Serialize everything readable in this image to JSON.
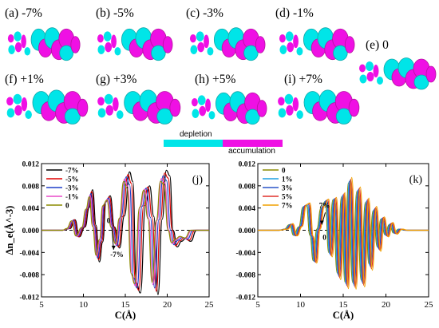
{
  "colors": {
    "depletion": "#00e5e8",
    "accumulation": "#ef10e4",
    "depletion_dark": "#11a7a9",
    "accumulation_dark": "#b5129f"
  },
  "panels": [
    {
      "label": "(a) -7%"
    },
    {
      "label": "(b) -5%"
    },
    {
      "label": "(c) -3%"
    },
    {
      "label": "(d) -1%"
    },
    {
      "label": "(e) 0"
    },
    {
      "label": "(f) +1%"
    },
    {
      "label": "(g) +3%"
    },
    {
      "label": "(h) +5%"
    },
    {
      "label": "(i) +7%"
    }
  ],
  "colorbar": {
    "depletion_label": "depletion",
    "accumulation_label": "accumulation"
  },
  "chart_data": [
    {
      "type": "line",
      "panel_label": "(j)",
      "xlabel": "C(Å)",
      "ylabel": "Δn_e(Å^-3)",
      "xlim": [
        5,
        25
      ],
      "ylim": [
        -0.012,
        0.012
      ],
      "xticks": [
        5,
        10,
        15,
        20,
        25
      ],
      "yticks": [
        0.012,
        0.008,
        0.004,
        0.0,
        -0.004,
        -0.008,
        -0.012
      ],
      "xtick_labels": [
        "5",
        "10",
        "15",
        "20",
        "25"
      ],
      "ytick_labels": [
        "0.012",
        "0.008",
        "0.004",
        "0.000",
        "-0.004",
        "-0.008",
        "-0.012"
      ],
      "legend_position": "top-left",
      "series": [
        {
          "name": "-7%",
          "color": "#000000",
          "x": [
            5,
            7.5,
            8.4,
            9,
            9.5,
            10.2,
            10.7,
            11.1,
            11.5,
            11.9,
            12.3,
            12.7,
            13.2,
            13.7,
            14.3,
            14.9,
            15.5,
            15.9,
            16.3,
            16.8,
            17.4,
            17.9,
            18.4,
            18.9,
            19.4,
            19.9,
            20.3,
            20.7,
            21.2,
            21.7,
            22.2,
            22.8,
            23.5,
            25
          ],
          "y": [
            0,
            0,
            0.0003,
            0.0019,
            -0.0012,
            0.0006,
            0.0041,
            0.0073,
            0.0009,
            -0.0057,
            -0.0021,
            0.0052,
            0.0062,
            0.0006,
            -0.0032,
            0.0026,
            0.0105,
            0.0088,
            -0.0095,
            -0.0113,
            0.0045,
            0.008,
            0.0025,
            -0.0116,
            0.002,
            0.0108,
            0.0098,
            0.0,
            -0.003,
            -0.002,
            -0.0015,
            -0.002,
            0,
            0
          ]
        },
        {
          "name": "-5%",
          "color": "#e00000",
          "x": [
            5,
            7.5,
            8.3,
            8.9,
            9.4,
            10.1,
            10.6,
            11.0,
            11.4,
            11.8,
            12.2,
            12.6,
            13.1,
            13.6,
            14.2,
            14.7,
            15.3,
            15.7,
            16.2,
            16.6,
            17.2,
            17.7,
            18.2,
            18.7,
            19.2,
            19.7,
            20.1,
            20.6,
            21.0,
            21.5,
            22.0,
            22.6,
            23.3,
            25
          ],
          "y": [
            0,
            0,
            0.0003,
            0.0019,
            -0.0012,
            0.0006,
            0.0041,
            0.007,
            0.0008,
            -0.0053,
            -0.002,
            0.005,
            0.006,
            0.0006,
            -0.003,
            0.0025,
            0.01,
            0.0085,
            -0.009,
            -0.0108,
            0.0044,
            0.0078,
            0.0024,
            -0.011,
            0.002,
            0.0103,
            0.0094,
            0.0,
            -0.0028,
            -0.0019,
            -0.0014,
            -0.0018,
            0,
            0
          ]
        },
        {
          "name": "-3%",
          "color": "#1f3fc8",
          "x": [
            5,
            7.5,
            8.2,
            8.8,
            9.3,
            10.0,
            10.5,
            10.9,
            11.3,
            11.7,
            12.1,
            12.5,
            13.0,
            13.5,
            14.0,
            14.5,
            15.1,
            15.5,
            16.0,
            16.4,
            17.0,
            17.5,
            18.0,
            18.5,
            19.0,
            19.5,
            19.9,
            20.4,
            20.8,
            21.3,
            21.8,
            22.4,
            23.1,
            25
          ],
          "y": [
            0,
            0,
            0.0003,
            0.0018,
            -0.0011,
            0.0006,
            0.004,
            0.0066,
            0.0008,
            -0.005,
            -0.0019,
            0.0048,
            0.0058,
            0.0006,
            -0.0028,
            0.0024,
            0.0096,
            0.0082,
            -0.0086,
            -0.0104,
            0.0043,
            0.0076,
            0.0023,
            -0.0104,
            0.0019,
            0.0098,
            0.009,
            0.0,
            -0.0026,
            -0.0018,
            -0.0013,
            -0.0016,
            0,
            0
          ]
        },
        {
          "name": "-1%",
          "color": "#e84ac8",
          "x": [
            5,
            7.5,
            8.1,
            8.7,
            9.2,
            9.9,
            10.4,
            10.8,
            11.2,
            11.6,
            12.0,
            12.4,
            12.9,
            13.4,
            13.9,
            14.4,
            14.9,
            15.3,
            15.8,
            16.2,
            16.8,
            17.3,
            17.8,
            18.3,
            18.8,
            19.3,
            19.7,
            20.2,
            20.6,
            21.1,
            21.6,
            22.2,
            22.9,
            25
          ],
          "y": [
            0,
            0,
            0.0003,
            0.0017,
            -0.0011,
            0.0006,
            0.0039,
            0.0063,
            0.0007,
            -0.0047,
            -0.0018,
            0.0046,
            0.0056,
            0.0005,
            -0.0026,
            0.0023,
            0.0092,
            0.0079,
            -0.0082,
            -0.01,
            0.0042,
            0.0074,
            0.0022,
            -0.0098,
            0.0018,
            0.0093,
            0.0086,
            0.0,
            -0.0024,
            -0.0017,
            -0.0012,
            -0.0015,
            0,
            0
          ]
        },
        {
          "name": "0",
          "color": "#8c8c00",
          "x": [
            5,
            7.5,
            8.0,
            8.6,
            9.1,
            9.8,
            10.3,
            10.7,
            11.1,
            11.5,
            11.9,
            12.3,
            12.8,
            13.3,
            13.8,
            14.3,
            14.8,
            15.2,
            15.7,
            16.1,
            16.7,
            17.2,
            17.7,
            18.2,
            18.7,
            19.2,
            19.6,
            20.1,
            20.5,
            21.0,
            21.5,
            22.1,
            22.8,
            25
          ],
          "y": [
            0,
            0,
            0.0003,
            0.0017,
            -0.001,
            0.0005,
            0.0038,
            0.006,
            0.0007,
            -0.0045,
            -0.0017,
            0.0044,
            0.0054,
            0.0005,
            -0.0024,
            0.0022,
            0.0088,
            0.0076,
            -0.0078,
            -0.0096,
            0.0041,
            0.0072,
            0.0021,
            -0.0094,
            0.0017,
            0.0088,
            0.0082,
            0.0,
            -0.0022,
            -0.0016,
            -0.0011,
            -0.0014,
            0,
            0
          ]
        }
      ],
      "annotations": [
        {
          "text": "0",
          "x": 13.0,
          "y": 0.0013
        },
        {
          "text": "-7%",
          "x": 14.0,
          "y": -0.0048
        }
      ]
    },
    {
      "type": "line",
      "panel_label": "(k)",
      "xlabel": "C(Å)",
      "ylabel": "",
      "xlim": [
        5,
        25
      ],
      "ylim": [
        -0.012,
        0.012
      ],
      "xticks": [
        5,
        10,
        15,
        20,
        25
      ],
      "yticks": [
        0.012,
        0.008,
        0.004,
        0.0,
        -0.004,
        -0.008,
        -0.012
      ],
      "xtick_labels": [
        "5",
        "10",
        "15",
        "20",
        "25"
      ],
      "ytick_labels": [
        "0.012",
        "0.008",
        "0.004",
        "0.000",
        "-0.004",
        "-0.008",
        "-0.012"
      ],
      "legend_position": "top-left",
      "series": [
        {
          "name": "0",
          "color": "#8c8c00",
          "x": [
            5,
            7.5,
            8.1,
            8.7,
            9.2,
            9.8,
            10.3,
            10.7,
            11.1,
            11.5,
            11.9,
            12.4,
            12.9,
            13.3,
            13.8,
            14.3,
            14.8,
            15.2,
            15.6,
            16.1,
            16.6,
            17.1,
            17.6,
            18.0,
            18.5,
            19.0,
            19.4,
            19.9,
            20.4,
            20.9,
            21.5,
            22.2,
            23.0,
            25
          ],
          "y": [
            0,
            0,
            0.0002,
            0.001,
            -0.0009,
            0.0006,
            0.0042,
            0.0044,
            -0.0009,
            -0.0055,
            0.0002,
            0.004,
            0.0052,
            -0.004,
            0.0055,
            -0.0077,
            0.006,
            -0.0093,
            0.0085,
            -0.0094,
            0.007,
            -0.009,
            0.005,
            -0.006,
            0.0035,
            -0.003,
            0.002,
            -0.0008,
            0.001,
            -0.0005,
            0.0002,
            0.0,
            0,
            0
          ]
        },
        {
          "name": "1%",
          "color": "#1fa0e0",
          "x": [
            5,
            7.5,
            8.2,
            8.8,
            9.3,
            9.9,
            10.4,
            10.8,
            11.2,
            11.6,
            12.0,
            12.5,
            13.0,
            13.4,
            13.9,
            14.4,
            14.9,
            15.3,
            15.7,
            16.2,
            16.7,
            17.2,
            17.7,
            18.1,
            18.6,
            19.1,
            19.5,
            20.0,
            20.5,
            21.0,
            21.6,
            22.3,
            23.1,
            25
          ],
          "y": [
            0,
            0,
            0.0002,
            0.001,
            -0.0009,
            0.0006,
            0.0043,
            0.0045,
            -0.0009,
            -0.0056,
            0.0002,
            0.0041,
            0.0053,
            -0.0042,
            0.0056,
            -0.008,
            0.0062,
            -0.0096,
            0.0088,
            -0.0097,
            0.0072,
            -0.0093,
            0.0052,
            -0.0063,
            0.0037,
            -0.0032,
            0.0021,
            -0.0009,
            0.0011,
            -0.0005,
            0.0002,
            0.0,
            0,
            0
          ]
        },
        {
          "name": "3%",
          "color": "#2a55c8",
          "x": [
            5,
            7.5,
            8.3,
            8.9,
            9.4,
            10.0,
            10.5,
            10.9,
            11.3,
            11.7,
            12.1,
            12.6,
            13.1,
            13.5,
            14.0,
            14.5,
            15.0,
            15.4,
            15.8,
            16.3,
            16.8,
            17.3,
            17.8,
            18.2,
            18.7,
            19.2,
            19.6,
            20.1,
            20.6,
            21.1,
            21.7,
            22.4,
            23.2,
            25
          ],
          "y": [
            0,
            0,
            0.0002,
            0.0011,
            -0.001,
            0.0007,
            0.0044,
            0.0047,
            -0.001,
            -0.0057,
            0.0002,
            0.0042,
            0.0054,
            -0.0044,
            0.0057,
            -0.0083,
            0.0064,
            -0.0099,
            0.009,
            -0.01,
            0.0074,
            -0.0096,
            0.0054,
            -0.0066,
            0.0039,
            -0.0034,
            0.0022,
            -0.001,
            0.0012,
            -0.0006,
            0.0002,
            0.0,
            0,
            0
          ]
        },
        {
          "name": "5%",
          "color": "#e0302a",
          "x": [
            5,
            7.5,
            8.4,
            9.0,
            9.5,
            10.1,
            10.6,
            11.0,
            11.4,
            11.8,
            12.2,
            12.7,
            13.2,
            13.6,
            14.1,
            14.6,
            15.1,
            15.5,
            15.9,
            16.4,
            16.9,
            17.4,
            17.9,
            18.3,
            18.8,
            19.3,
            19.7,
            20.2,
            20.7,
            21.2,
            21.8,
            22.5,
            23.3,
            25
          ],
          "y": [
            0,
            0,
            0.0002,
            0.0011,
            -0.001,
            0.0007,
            0.0045,
            0.0048,
            -0.001,
            -0.0058,
            0.0002,
            0.0043,
            0.0055,
            -0.0046,
            0.0058,
            -0.0086,
            0.0066,
            -0.0102,
            0.0092,
            -0.0103,
            0.0076,
            -0.0099,
            0.0056,
            -0.0069,
            0.0041,
            -0.0036,
            0.0023,
            -0.0011,
            0.0013,
            -0.0006,
            0.0002,
            0.0,
            0,
            0
          ]
        },
        {
          "name": "7%",
          "color": "#f0a000",
          "x": [
            5,
            7.5,
            8.5,
            9.1,
            9.6,
            10.2,
            10.7,
            11.1,
            11.5,
            11.9,
            12.3,
            12.8,
            13.3,
            13.7,
            14.2,
            14.7,
            15.2,
            15.6,
            16.0,
            16.5,
            17.0,
            17.5,
            18.0,
            18.4,
            18.9,
            19.4,
            19.8,
            20.3,
            20.8,
            21.3,
            21.9,
            22.6,
            23.4,
            25
          ],
          "y": [
            0,
            0,
            0.0002,
            0.0012,
            -0.001,
            0.0007,
            0.0046,
            0.0049,
            -0.0011,
            -0.0059,
            0.0002,
            0.0044,
            0.0056,
            -0.0048,
            0.0059,
            -0.0089,
            0.0068,
            -0.0105,
            0.0095,
            -0.0106,
            0.0078,
            -0.0102,
            0.0058,
            -0.0072,
            0.0043,
            -0.0038,
            0.0024,
            -0.0012,
            0.0014,
            -0.0007,
            0.0002,
            0.0,
            0,
            0
          ]
        }
      ],
      "annotations": [
        {
          "text": "7%",
          "x": 12.8,
          "y": 0.004
        },
        {
          "text": "0",
          "x": 12.8,
          "y": -0.0017
        }
      ]
    }
  ]
}
